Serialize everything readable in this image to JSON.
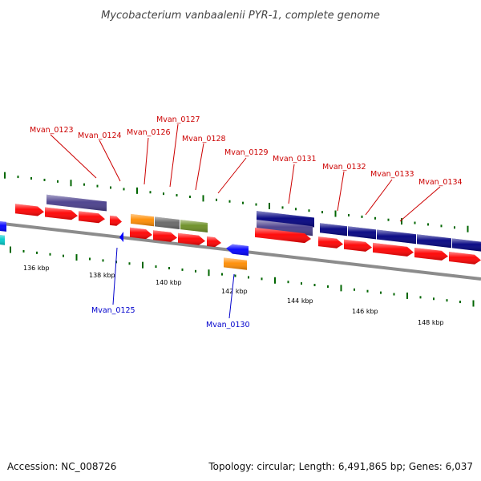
{
  "title": "Mycobacterium vanbaalenii PYR-1, complete genome",
  "footer": {
    "accession": "Accession: NC_008726",
    "summary": "Topology: circular; Length: 6,491,865 bp; Genes: 6,037"
  },
  "colors": {
    "forward_label": "#cc0000",
    "reverse_label": "#0000cc",
    "backbone": "#888888",
    "tick": "#006600",
    "red_gene": "#ff0000",
    "navy_gene": "#000080",
    "slate_gene": "#483d8b",
    "orange_gene": "#ff8c00",
    "gray_gene": "#666666",
    "olive_gene": "#6b8e23",
    "blue_gene": "#0000ff",
    "cyan_gene": "#00cccc"
  },
  "scale_labels": [
    "136 kbp",
    "138 kbp",
    "140 kbp",
    "142 kbp",
    "144 kbp",
    "146 kbp",
    "148 kbp"
  ],
  "forward_gene_labels": [
    "Mvan_0123",
    "Mvan_0124",
    "Mvan_0126",
    "Mvan_0127",
    "Mvan_0128",
    "Mvan_0129",
    "Mvan_0131",
    "Mvan_0132",
    "Mvan_0133",
    "Mvan_0134"
  ],
  "reverse_gene_labels": [
    "Mvan_0125",
    "Mvan_0130"
  ]
}
